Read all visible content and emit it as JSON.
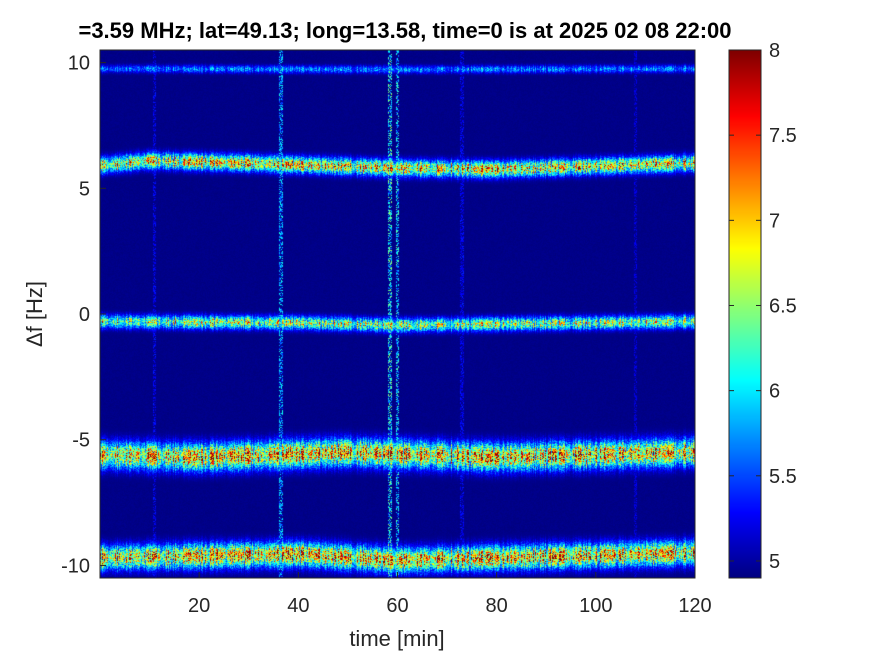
{
  "chart_data": {
    "type": "heatmap",
    "title": "=3.59 MHz;  lat=49.13; long=13.58, time=0 is at 2025 02 08 22:00",
    "xlabel": "time [min]",
    "ylabel": "Δf [Hz]",
    "xlim": [
      0,
      120
    ],
    "ylim": [
      -10.5,
      10.5
    ],
    "x_ticks": [
      20,
      40,
      60,
      80,
      100,
      120
    ],
    "x_tick_labels": [
      "20",
      "40",
      "60",
      "80",
      "100",
      "120"
    ],
    "y_ticks": [
      -10,
      -5,
      0,
      5,
      10
    ],
    "y_tick_labels": [
      "-10",
      "-5",
      "0",
      "5",
      "10"
    ],
    "colorbar": {
      "colormap": "jet",
      "clim": [
        4.9,
        8
      ],
      "ticks": [
        5,
        5.5,
        6,
        6.5,
        7,
        7.5,
        8
      ],
      "tick_labels": [
        "5",
        "5.5",
        "6",
        "6.5",
        "7",
        "7.5",
        "8"
      ]
    },
    "background_value": 4.9,
    "bands": [
      {
        "points": [
          [
            0,
            9.75
          ],
          [
            60,
            9.72
          ],
          [
            120,
            9.75
          ]
        ],
        "peak": 5.8,
        "width": 0.15
      },
      {
        "points": [
          [
            0,
            5.9
          ],
          [
            10,
            6.1
          ],
          [
            30,
            6.0
          ],
          [
            60,
            5.8
          ],
          [
            80,
            5.75
          ],
          [
            120,
            6.0
          ]
        ],
        "peak": 7.2,
        "width": 0.3
      },
      {
        "points": [
          [
            0,
            -0.3
          ],
          [
            40,
            -0.35
          ],
          [
            60,
            -0.45
          ],
          [
            120,
            -0.3
          ]
        ],
        "peak": 6.8,
        "width": 0.25
      },
      {
        "points": [
          [
            0,
            -5.6
          ],
          [
            20,
            -5.7
          ],
          [
            50,
            -5.5
          ],
          [
            80,
            -5.7
          ],
          [
            120,
            -5.5
          ]
        ],
        "peak": 7.4,
        "width": 0.5
      },
      {
        "points": [
          [
            0,
            -9.7
          ],
          [
            40,
            -9.55
          ],
          [
            60,
            -9.8
          ],
          [
            120,
            -9.5
          ]
        ],
        "peak": 7.4,
        "width": 0.45
      }
    ],
    "vertical_streaks": [
      {
        "x": 36.5,
        "peak": 6.2
      },
      {
        "x": 58.5,
        "peak": 6.6
      },
      {
        "x": 60.0,
        "peak": 6.4
      },
      {
        "x": 11.0,
        "peak": 5.4
      },
      {
        "x": 73.0,
        "peak": 5.4
      },
      {
        "x": 108.0,
        "peak": 5.3
      }
    ]
  }
}
